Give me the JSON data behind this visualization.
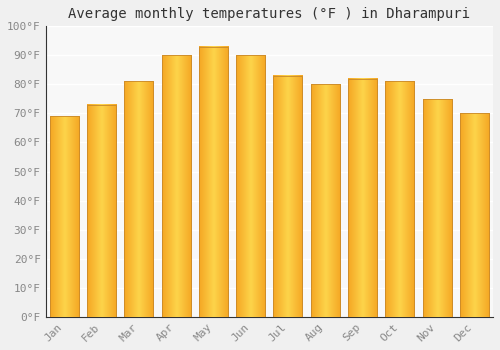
{
  "title": "Average monthly temperatures (°F ) in Dharampuri",
  "months": [
    "Jan",
    "Feb",
    "Mar",
    "Apr",
    "May",
    "Jun",
    "Jul",
    "Aug",
    "Sep",
    "Oct",
    "Nov",
    "Dec"
  ],
  "values": [
    69,
    73,
    81,
    90,
    93,
    90,
    83,
    80,
    82,
    81,
    75,
    70
  ],
  "bar_color_left": "#F5A623",
  "bar_color_mid": "#FDD44A",
  "bar_color_right": "#F5A623",
  "bar_edge_color": "#C8882A",
  "ylim": [
    0,
    100
  ],
  "yticks": [
    0,
    10,
    20,
    30,
    40,
    50,
    60,
    70,
    80,
    90,
    100
  ],
  "ytick_labels": [
    "0°F",
    "10°F",
    "20°F",
    "30°F",
    "40°F",
    "50°F",
    "60°F",
    "70°F",
    "80°F",
    "90°F",
    "100°F"
  ],
  "background_color": "#f0f0f0",
  "plot_bg_color": "#f8f8f8",
  "grid_color": "#ffffff",
  "title_fontsize": 10,
  "tick_fontsize": 8,
  "bar_width": 0.78
}
